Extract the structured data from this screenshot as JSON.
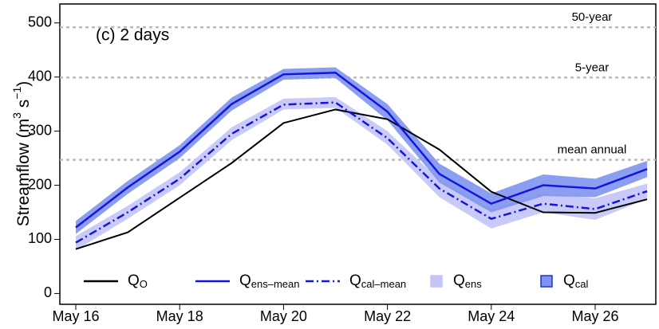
{
  "chart_data": {
    "type": "line",
    "panel_label": "(c) 2 days",
    "y_label": {
      "text": "Streamflow (m",
      "sup1": "3",
      "mid": " s",
      "sup2": "−1",
      "end": ")"
    },
    "categories": [
      "May 16",
      null,
      "May 18",
      null,
      "May 20",
      null,
      "May 22",
      null,
      "May 24",
      null,
      "May 26",
      null
    ],
    "ylim": [
      -20,
      535
    ],
    "yticks": [
      0,
      100,
      200,
      300,
      400,
      500
    ],
    "grid": false,
    "reference_lines": [
      {
        "value": 492,
        "label": "50-year"
      },
      {
        "value": 399,
        "label": "5-year"
      },
      {
        "value": 247,
        "label": "mean annual"
      }
    ],
    "bands": [
      {
        "name": "Q",
        "sub": "ens",
        "color": "#c4c4f7",
        "lower": [
          80,
          138,
          200,
          283,
          340,
          343,
          275,
          178,
          120,
          150,
          136,
          175
        ],
        "upper": [
          106,
          162,
          224,
          307,
          360,
          363,
          300,
          210,
          156,
          185,
          176,
          203
        ]
      },
      {
        "name": "Q",
        "sub": "cal",
        "color": "#7f93ee",
        "edge": "#2233cc",
        "lower": [
          110,
          184,
          250,
          338,
          395,
          398,
          320,
          205,
          150,
          180,
          178,
          215
        ],
        "upper": [
          134,
          208,
          274,
          362,
          415,
          418,
          350,
          240,
          185,
          220,
          212,
          245
        ]
      }
    ],
    "series": [
      {
        "name": "Q",
        "sub": "O",
        "color": "#000000",
        "style": "solid",
        "values": [
          82,
          113,
          177,
          241,
          315,
          340,
          322,
          266,
          188,
          150,
          149,
          174
        ]
      },
      {
        "name": "Q",
        "sub": "ens–mean",
        "color": "#1515e0",
        "style": "solid",
        "values": [
          122,
          196,
          262,
          350,
          405,
          408,
          336,
          221,
          166,
          200,
          194,
          230
        ]
      },
      {
        "name": "Q",
        "sub": "cal–mean",
        "color": "#1515e0",
        "style": "dashdot",
        "values": [
          94,
          150,
          212,
          295,
          349,
          353,
          287,
          194,
          138,
          166,
          156,
          189
        ]
      }
    ]
  }
}
